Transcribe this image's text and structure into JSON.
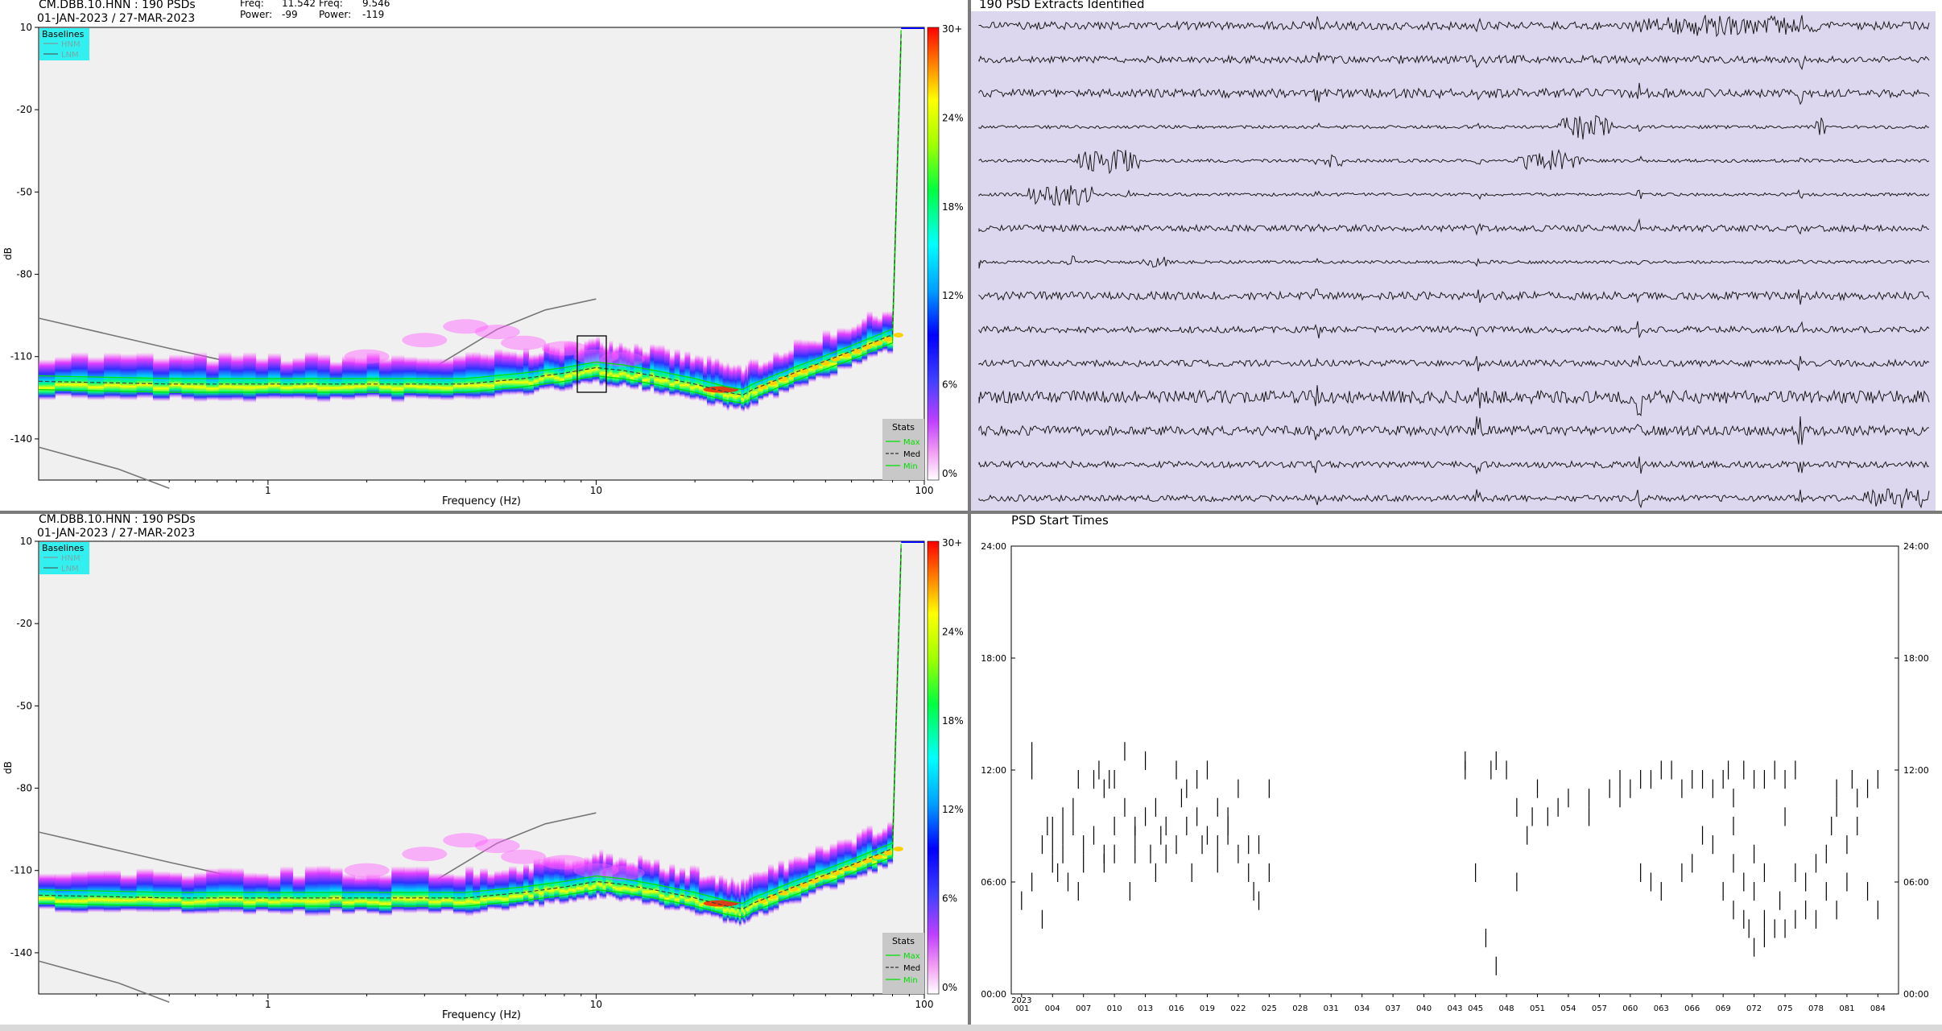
{
  "pdf_panels": [
    {
      "id": "top",
      "title": "CM.DBB.10.HNN : 190 PSDs",
      "date_range": "01-JAN-2023 / 27-MAR-2023",
      "cursor": {
        "labels": [
          "Freq:",
          "Freq:",
          "Power:",
          "Power:"
        ],
        "values": [
          "11.542",
          "9.546",
          "-99",
          "-119"
        ]
      }
    },
    {
      "id": "bottom",
      "title": "CM.DBB.10.HNN : 190 PSDs",
      "date_range": "01-JAN-2023 / 27-MAR-2023"
    }
  ],
  "pdf_common": {
    "baselines_title": "Baselines",
    "baselines": [
      "HNM",
      "LNM"
    ],
    "stats_title": "Stats",
    "stats": [
      "Max",
      "Med",
      "Min"
    ],
    "colorbar_labels": [
      "30+",
      "24%",
      "18%",
      "12%",
      "6%",
      "0%"
    ],
    "colors": {
      "hnm": "#00c8c8",
      "med": "#404040",
      "minmax": "#00e000",
      "legend_bg": "#33f0f0",
      "stats_bg": "#c8c8c8"
    }
  },
  "extracts": {
    "title": "190 PSD Extracts Identified",
    "trace_count": 15,
    "background": "#dcd6ee"
  },
  "start_times": {
    "title": "PSD Start Times",
    "year_label": "2023",
    "colors": {
      "tick": "#000000"
    }
  },
  "chart_data": [
    {
      "type": "heatmap",
      "title": "CM.DBB.10.HNN : 190 PSDs",
      "subtitle": "01-JAN-2023 / 27-MAR-2023",
      "xlabel": "Frequency (Hz)",
      "ylabel": "dB",
      "xscale": "log",
      "xlim": [
        0.2,
        100
      ],
      "ylim": [
        -155,
        10
      ],
      "xticks": [
        "1",
        "10",
        "100"
      ],
      "yticks": [
        "10",
        "-20",
        "-50",
        "-80",
        "-110",
        "-140"
      ],
      "median_curve": {
        "freq": [
          0.2,
          0.5,
          1,
          2,
          4,
          6,
          8,
          10,
          12,
          15,
          20,
          25,
          28,
          30,
          40,
          60,
          80,
          85
        ],
        "db": [
          -119,
          -120,
          -120,
          -120,
          -120,
          -118,
          -116,
          -114,
          -115,
          -117,
          -120,
          -123,
          -124,
          -122,
          -116,
          -108,
          -102,
          8
        ]
      },
      "legend": [
        "HNM",
        "LNM",
        "Max",
        "Med",
        "Min"
      ]
    },
    {
      "type": "heatmap",
      "title": "CM.DBB.10.HNN : 190 PSDs",
      "subtitle": "01-JAN-2023 / 27-MAR-2023",
      "xlabel": "Frequency (Hz)",
      "ylabel": "dB",
      "xscale": "log",
      "xlim": [
        0.2,
        100
      ],
      "ylim": [
        -155,
        10
      ],
      "xticks": [
        "1",
        "10",
        "100"
      ],
      "yticks": [
        "10",
        "-20",
        "-50",
        "-80",
        "-110",
        "-140"
      ],
      "median_curve": {
        "freq": [
          0.2,
          0.5,
          1,
          2,
          4,
          6,
          8,
          10,
          12,
          15,
          20,
          25,
          28,
          30,
          40,
          60,
          80,
          85
        ],
        "db": [
          -119,
          -120,
          -120,
          -120,
          -120,
          -118,
          -116,
          -114,
          -115,
          -117,
          -120,
          -123,
          -124,
          -122,
          -116,
          -108,
          -102,
          8
        ]
      },
      "legend": [
        "HNM",
        "LNM",
        "Max",
        "Med",
        "Min"
      ]
    },
    {
      "type": "scatter",
      "title": "PSD Start Times",
      "xlabel": "2023",
      "xticks": [
        "001",
        "004",
        "007",
        "010",
        "013",
        "016",
        "019",
        "022",
        "025",
        "028",
        "031",
        "034",
        "037",
        "040",
        "043",
        "045",
        "048",
        "051",
        "054",
        "057",
        "060",
        "063",
        "066",
        "069",
        "072",
        "075",
        "078",
        "081",
        "084"
      ],
      "yticks": [
        "00:00",
        "06:00",
        "12:00",
        "18:00",
        "24:00"
      ],
      "xlim": [
        0,
        86
      ],
      "ylim": [
        0,
        24
      ],
      "marker": "vertical tick (1 hour)",
      "points": [
        [
          1,
          5.5
        ],
        [
          2,
          6.5
        ],
        [
          2,
          12.5
        ],
        [
          2,
          13.5
        ],
        [
          3,
          4.5
        ],
        [
          3,
          8.5
        ],
        [
          3.5,
          9.5
        ],
        [
          4,
          7.5
        ],
        [
          4,
          8.5
        ],
        [
          4,
          9.5
        ],
        [
          4.5,
          7
        ],
        [
          5,
          8
        ],
        [
          5,
          9
        ],
        [
          5,
          10
        ],
        [
          5.5,
          6.5
        ],
        [
          6,
          9.5
        ],
        [
          6,
          10.5
        ],
        [
          6.5,
          6
        ],
        [
          6.5,
          12
        ],
        [
          7,
          7.5
        ],
        [
          7,
          8.5
        ],
        [
          8,
          9
        ],
        [
          8,
          12
        ],
        [
          8.5,
          12.5
        ],
        [
          9,
          8
        ],
        [
          9,
          7.5
        ],
        [
          9,
          11.5
        ],
        [
          9.5,
          12
        ],
        [
          10,
          9.5
        ],
        [
          10,
          8
        ],
        [
          10,
          12
        ],
        [
          11,
          10.5
        ],
        [
          11,
          13.5
        ],
        [
          11.5,
          6
        ],
        [
          12,
          8
        ],
        [
          12,
          9
        ],
        [
          12,
          9.5
        ],
        [
          13,
          10
        ],
        [
          13,
          13
        ],
        [
          13.5,
          8
        ],
        [
          14,
          7
        ],
        [
          14,
          10.5
        ],
        [
          14.5,
          9
        ],
        [
          15,
          9.5
        ],
        [
          15,
          8
        ],
        [
          16,
          8.5
        ],
        [
          16,
          12.5
        ],
        [
          16.5,
          11
        ],
        [
          17,
          11.5
        ],
        [
          17,
          9.5
        ],
        [
          17.5,
          7
        ],
        [
          18,
          12
        ],
        [
          18,
          10
        ],
        [
          18.5,
          8.5
        ],
        [
          19,
          12.5
        ],
        [
          19,
          9
        ],
        [
          20,
          7.5
        ],
        [
          20,
          8.5
        ],
        [
          20,
          10.5
        ],
        [
          21,
          9.5
        ],
        [
          21,
          10
        ],
        [
          21,
          9
        ],
        [
          22,
          8
        ],
        [
          22,
          11.5
        ],
        [
          23,
          7
        ],
        [
          23,
          8.5
        ],
        [
          23.5,
          6
        ],
        [
          24,
          8.5
        ],
        [
          24,
          5.5
        ],
        [
          25,
          7
        ],
        [
          25,
          11.5
        ],
        [
          44,
          12.5
        ],
        [
          44,
          13
        ],
        [
          45,
          7
        ],
        [
          46,
          3.5
        ],
        [
          46.5,
          12.5
        ],
        [
          47,
          13
        ],
        [
          47,
          2
        ],
        [
          48,
          12.5
        ],
        [
          49,
          6.5
        ],
        [
          49,
          10.5
        ],
        [
          50,
          9
        ],
        [
          50.5,
          10
        ],
        [
          51,
          11.5
        ],
        [
          52,
          10
        ],
        [
          53,
          10.5
        ],
        [
          54,
          11
        ],
        [
          56,
          11
        ],
        [
          56,
          10
        ],
        [
          58,
          11.5
        ],
        [
          59,
          12
        ],
        [
          59,
          11
        ],
        [
          60,
          11.5
        ],
        [
          61,
          12
        ],
        [
          61,
          7
        ],
        [
          62,
          6.5
        ],
        [
          62,
          12
        ],
        [
          63,
          12.5
        ],
        [
          63,
          6
        ],
        [
          64,
          12.5
        ],
        [
          65,
          11.5
        ],
        [
          65,
          7
        ],
        [
          66,
          12
        ],
        [
          66,
          7.5
        ],
        [
          67,
          12
        ],
        [
          67,
          9
        ],
        [
          68,
          8.5
        ],
        [
          68,
          11.5
        ],
        [
          69,
          12
        ],
        [
          69,
          6
        ],
        [
          69.5,
          12.5
        ],
        [
          70,
          11
        ],
        [
          70,
          7.5
        ],
        [
          70,
          9.5
        ],
        [
          70,
          5
        ],
        [
          71,
          12.5
        ],
        [
          71,
          6.5
        ],
        [
          71,
          4.5
        ],
        [
          71.5,
          4
        ],
        [
          72,
          12
        ],
        [
          72,
          6
        ],
        [
          72,
          8
        ],
        [
          72,
          3
        ],
        [
          73,
          12
        ],
        [
          73,
          7
        ],
        [
          73,
          4.5
        ],
        [
          73,
          3.5
        ],
        [
          74,
          12.5
        ],
        [
          74,
          4
        ],
        [
          74.5,
          5.5
        ],
        [
          75,
          12
        ],
        [
          75,
          10
        ],
        [
          75,
          4
        ],
        [
          76,
          12.5
        ],
        [
          76,
          7
        ],
        [
          76,
          4.5
        ],
        [
          77,
          6.5
        ],
        [
          77,
          5
        ],
        [
          78,
          7.5
        ],
        [
          78,
          4.5
        ],
        [
          79,
          6
        ],
        [
          79,
          8
        ],
        [
          79.5,
          9.5
        ],
        [
          80,
          11.5
        ],
        [
          80,
          10.5
        ],
        [
          80,
          5
        ],
        [
          81,
          8.5
        ],
        [
          81,
          6.5
        ],
        [
          81.5,
          12
        ],
        [
          82,
          11
        ],
        [
          82,
          9.5
        ],
        [
          83,
          11.5
        ],
        [
          83,
          6
        ],
        [
          84,
          12
        ],
        [
          84,
          5
        ]
      ]
    }
  ]
}
